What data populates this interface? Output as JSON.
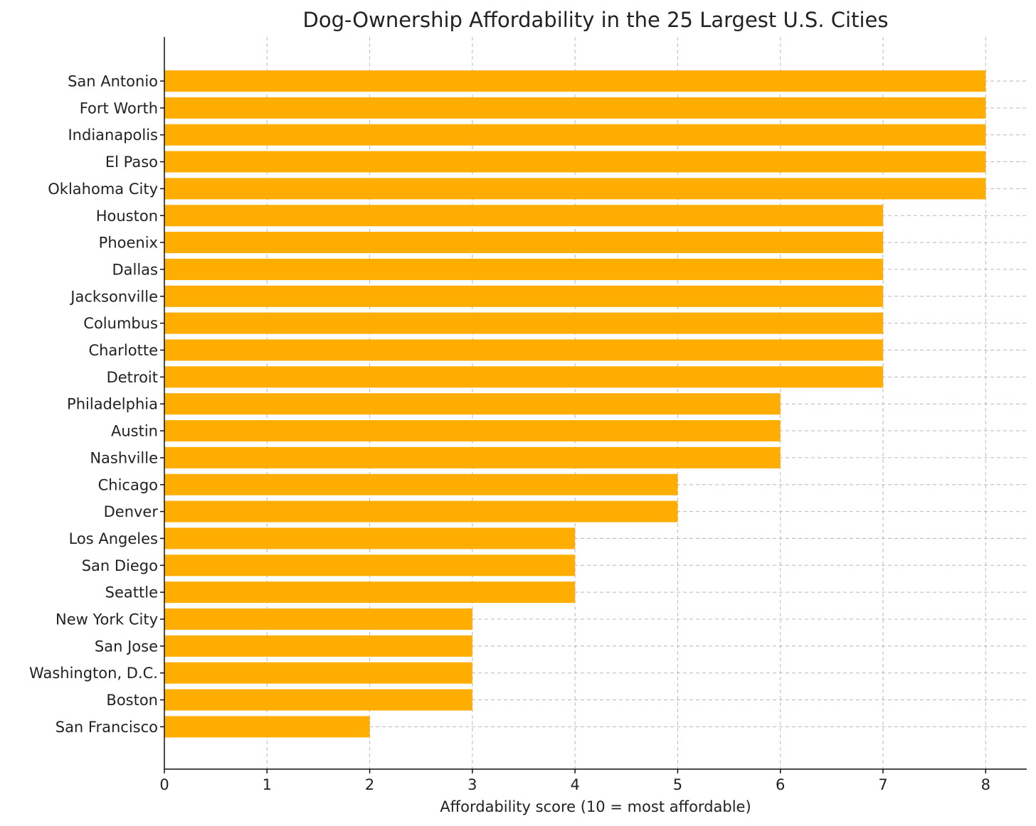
{
  "chart_data": {
    "type": "bar",
    "orientation": "horizontal",
    "title": "Dog-Ownership Affordability in the 25 Largest U.S. Cities",
    "xlabel": "Affordability score (10 = most affordable)",
    "ylabel": "",
    "xlim": [
      0,
      8.4
    ],
    "xticks": [
      0,
      1,
      2,
      3,
      4,
      5,
      6,
      7,
      8
    ],
    "grid": true,
    "bar_color": "#ffad00",
    "categories": [
      "San Antonio",
      "Fort Worth",
      "Indianapolis",
      "El Paso",
      "Oklahoma City",
      "Houston",
      "Phoenix",
      "Dallas",
      "Jacksonville",
      "Columbus",
      "Charlotte",
      "Detroit",
      "Philadelphia",
      "Austin",
      "Nashville",
      "Chicago",
      "Denver",
      "Los Angeles",
      "San Diego",
      "Seattle",
      "New York City",
      "San Jose",
      "Washington, D.C.",
      "Boston",
      "San Francisco"
    ],
    "values": [
      8,
      8,
      8,
      8,
      8,
      7,
      7,
      7,
      7,
      7,
      7,
      7,
      6,
      6,
      6,
      5,
      5,
      4,
      4,
      4,
      3,
      3,
      3,
      3,
      2
    ]
  }
}
